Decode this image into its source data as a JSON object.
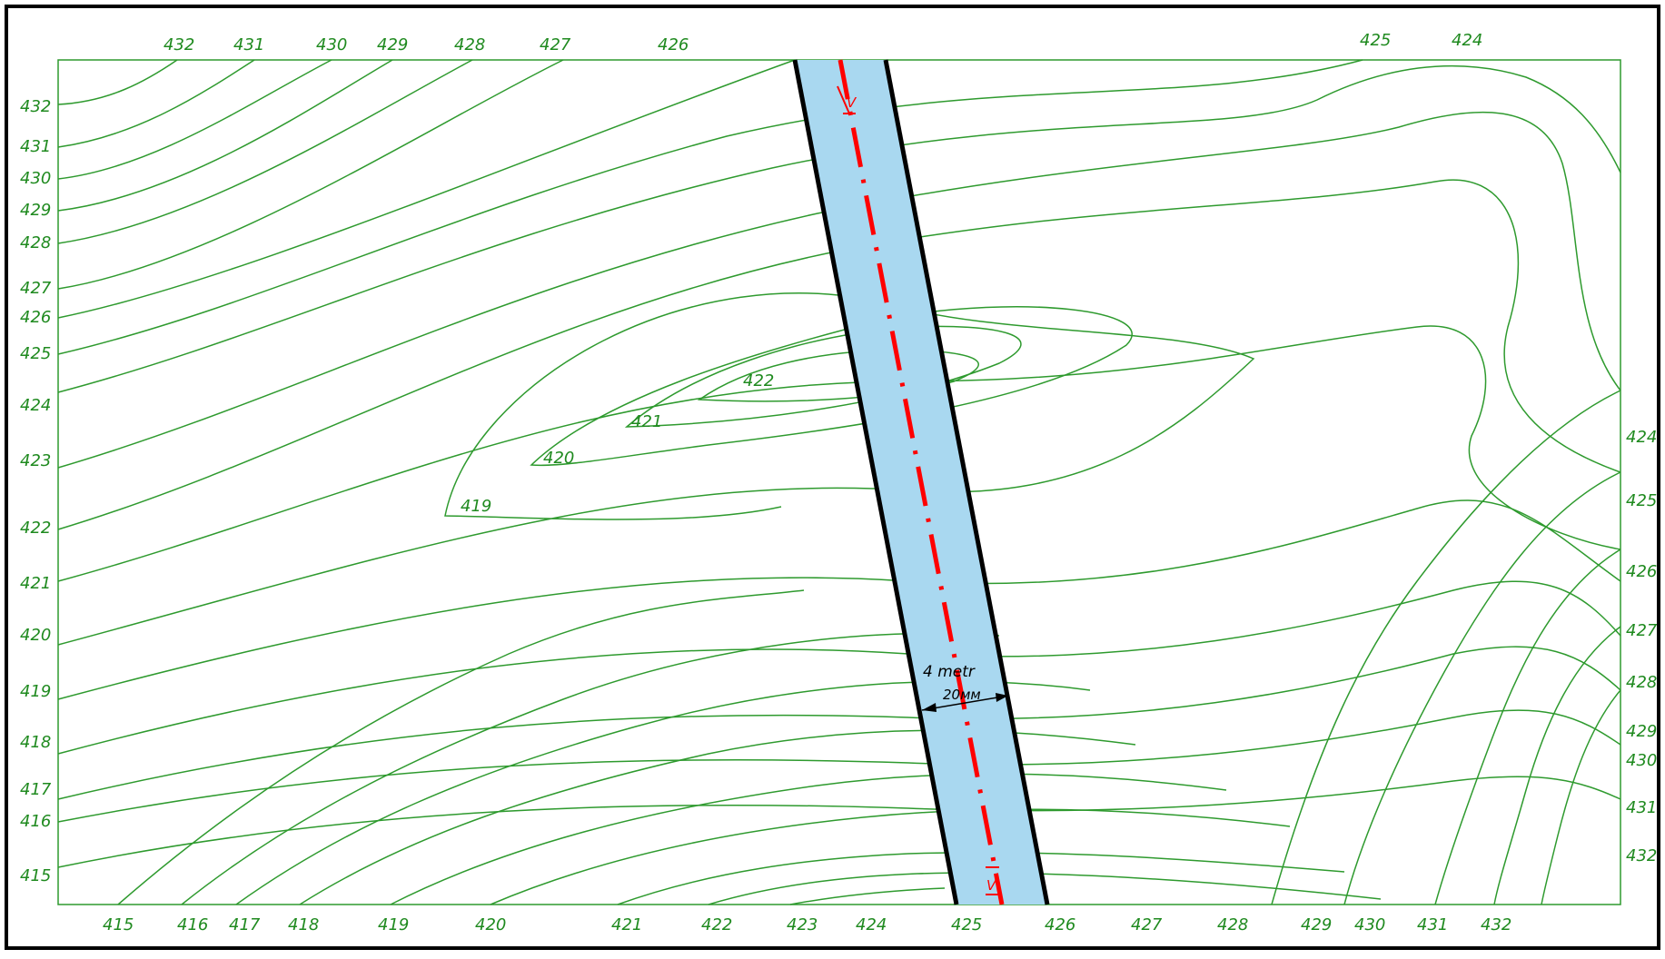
{
  "colors": {
    "background": "#ffffff",
    "frame": "#000000",
    "contour": "#2e9a2e",
    "label": "#1f8a1f",
    "channel_fill": "#a9d8f0",
    "channel_edge": "#000000",
    "axis_line": "#ff0000",
    "dimension": "#000000"
  },
  "labels": {
    "top": [
      "432",
      "431",
      "430",
      "429",
      "428",
      "427",
      "426",
      "425",
      "424"
    ],
    "left": [
      "432",
      "431",
      "430",
      "429",
      "428",
      "427",
      "426",
      "425",
      "424",
      "423",
      "422",
      "421",
      "420",
      "419",
      "418",
      "417",
      "416",
      "415"
    ],
    "right": [
      "424",
      "425",
      "426",
      "427",
      "428",
      "429",
      "430",
      "431",
      "432"
    ],
    "bottom": [
      "415",
      "416",
      "417",
      "418",
      "419",
      "420",
      "421",
      "422",
      "423",
      "424",
      "425",
      "426",
      "427",
      "428",
      "429",
      "430",
      "431",
      "432"
    ],
    "inner": [
      "422",
      "421",
      "420",
      "419"
    ]
  },
  "dimension": {
    "width_text": "4 metr",
    "scale_text": "20мм"
  },
  "section_marks": {
    "start": "V",
    "end": "V"
  }
}
